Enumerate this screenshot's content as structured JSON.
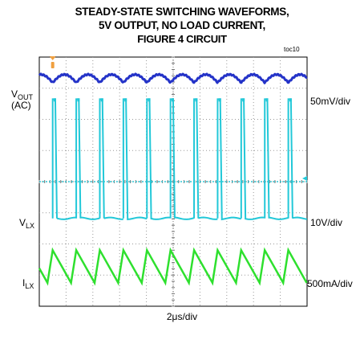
{
  "title_lines": [
    "STEADY-STATE SWITCHING WAVEFORMS,",
    "5V OUTPUT, NO LOAD CURRENT,",
    "FIGURE 4 CIRCUIT"
  ],
  "toc": "toc10",
  "channels": [
    {
      "label_main": "V",
      "label_sub": "OUT",
      "label_extra": "(AC)",
      "scale": "50mV/div",
      "color": "#2433c8"
    },
    {
      "label_main": "V",
      "label_sub": "LX",
      "label_extra": "",
      "scale": "10V/div",
      "color": "#22c8d8"
    },
    {
      "label_main": "I",
      "label_sub": "LX",
      "label_extra": "",
      "scale": "500mA/div",
      "color": "#2ee02e"
    }
  ],
  "xlabel": "2μs/div",
  "chart_data": {
    "type": "line",
    "title": "STEADY-STATE SWITCHING WAVEFORMS, 5V OUTPUT, NO LOAD CURRENT, FIGURE 4 CIRCUIT",
    "x_divisions": 10,
    "y_divisions": 8,
    "time_per_div": "2μs/div",
    "switching_period_div": 0.88,
    "trigger_position_div": 0.5,
    "grid": true,
    "series": [
      {
        "name": "VOUT (AC)",
        "scale": "50mV/div",
        "shape": "scalloped ripple"
      },
      {
        "name": "VLX",
        "scale": "10V/div",
        "shape": "pulse train"
      },
      {
        "name": "ILX",
        "scale": "500mA/div",
        "shape": "triangular sawtooth"
      }
    ]
  }
}
